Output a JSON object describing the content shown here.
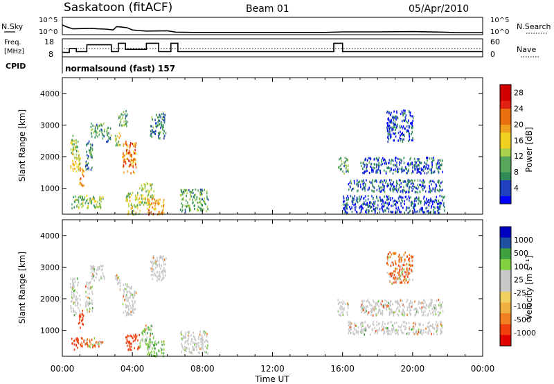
{
  "header": {
    "station": "Saskatoon (fitACF)",
    "beam": "Beam 01",
    "date": "05/Apr/2010",
    "cpid_label": "CPID",
    "cpid_text": "normalsound (fast) 157"
  },
  "panels": {
    "nsky": {
      "label": "N.Sky",
      "right_label": "N.Search",
      "ticks_left": [
        "10^5",
        "10^0"
      ],
      "ticks_right": [
        "10^5",
        "10^0"
      ]
    },
    "freq": {
      "label_line1": "Freq.",
      "label_line2": "[MHz]",
      "right_label": "Nave",
      "ticks_left": [
        "18",
        "8"
      ],
      "ticks_right": [
        "60",
        "0"
      ]
    }
  },
  "colors": {
    "power_scale": [
      "#0000ff",
      "#2040c0",
      "#2e8b57",
      "#58a55c",
      "#a8d04a",
      "#f0d020",
      "#f0a020",
      "#e87010",
      "#e02010",
      "#d00000"
    ],
    "velocity_scale": [
      "#e00000",
      "#f04010",
      "#f08020",
      "#f0b040",
      "#f0d060",
      "#c8c8c8",
      "#80d040",
      "#40a040",
      "#2050a0",
      "#0000c0"
    ],
    "ground_scatter": "#a8a8a8"
  },
  "chart_data": [
    {
      "type": "heatmap",
      "name": "power",
      "ylabel": "Slant Range [km]",
      "ylim": [
        180,
        4500
      ],
      "yticks": [
        "1000",
        "2000",
        "3000",
        "4000"
      ],
      "xlim": [
        "00:00",
        "24:00"
      ],
      "colorbar": {
        "label": "Power [dB]",
        "ticks": [
          "4",
          "8",
          "12",
          "16",
          "20",
          "24",
          "28"
        ],
        "range": [
          0,
          30
        ]
      },
      "blobs": [
        {
          "t0": 0.45,
          "t1": 1.0,
          "r0": 1500,
          "r1": 2200,
          "v": 16
        },
        {
          "t0": 0.4,
          "t1": 0.9,
          "r0": 2200,
          "r1": 2700,
          "v": 12
        },
        {
          "t0": 0.9,
          "t1": 1.2,
          "r0": 1100,
          "r1": 1700,
          "v": 20
        },
        {
          "t0": 1.3,
          "t1": 1.7,
          "r0": 1600,
          "r1": 2600,
          "v": 8
        },
        {
          "t0": 1.6,
          "t1": 2.4,
          "r0": 2600,
          "r1": 3100,
          "v": 10
        },
        {
          "t0": 0.5,
          "t1": 2.3,
          "r0": 400,
          "r1": 800,
          "v": 12
        },
        {
          "t0": 2.5,
          "t1": 2.8,
          "r0": 2500,
          "r1": 3000,
          "v": 8
        },
        {
          "t0": 3.0,
          "t1": 3.3,
          "r0": 2300,
          "r1": 2800,
          "v": 14
        },
        {
          "t0": 3.4,
          "t1": 4.2,
          "r0": 1500,
          "r1": 2500,
          "v": 22
        },
        {
          "t0": 3.2,
          "t1": 3.7,
          "r0": 3000,
          "r1": 3500,
          "v": 10
        },
        {
          "t0": 3.6,
          "t1": 4.4,
          "r0": 200,
          "r1": 900,
          "v": 14
        },
        {
          "t0": 4.4,
          "t1": 5.2,
          "r0": 500,
          "r1": 1200,
          "v": 14
        },
        {
          "t0": 4.8,
          "t1": 5.8,
          "r0": 200,
          "r1": 700,
          "v": 20
        },
        {
          "t0": 5.0,
          "t1": 5.9,
          "r0": 2600,
          "r1": 3400,
          "v": 8
        },
        {
          "t0": 6.7,
          "t1": 8.3,
          "r0": 300,
          "r1": 1000,
          "v": 10
        },
        {
          "t0": 15.7,
          "t1": 16.3,
          "r0": 1500,
          "r1": 2000,
          "v": 10
        },
        {
          "t0": 16.3,
          "t1": 21.7,
          "r0": 900,
          "r1": 1300,
          "v": 6
        },
        {
          "t0": 17.0,
          "t1": 21.7,
          "r0": 1500,
          "r1": 2000,
          "v": 5
        },
        {
          "t0": 16.0,
          "t1": 21.8,
          "r0": 250,
          "r1": 800,
          "v": 4
        },
        {
          "t0": 18.5,
          "t1": 20.0,
          "r0": 2500,
          "r1": 3500,
          "v": 4
        }
      ]
    },
    {
      "type": "heatmap",
      "name": "velocity",
      "ylabel": "Slant Range [km]",
      "ylim": [
        180,
        4500
      ],
      "yticks": [
        "1000",
        "2000",
        "3000",
        "4000"
      ],
      "xlim": [
        "00:00",
        "24:00"
      ],
      "xticks": [
        "00:00",
        "04:00",
        "08:00",
        "12:00",
        "16:00",
        "20:00",
        "00:00"
      ],
      "xlabel": "Time UT",
      "colorbar": {
        "label": "Velocity [m s⁻¹]",
        "ticks": [
          "1000",
          "500",
          "100",
          "25",
          "-25",
          "-100",
          "-500",
          "-1000"
        ]
      },
      "blobs": [
        {
          "t0": 0.45,
          "t1": 1.0,
          "r0": 1500,
          "r1": 2200,
          "v": 0
        },
        {
          "t0": 0.4,
          "t1": 0.9,
          "r0": 2200,
          "r1": 2700,
          "v": 0
        },
        {
          "t0": 0.9,
          "t1": 1.2,
          "r0": 1100,
          "r1": 1700,
          "v": -300
        },
        {
          "t0": 1.3,
          "t1": 1.7,
          "r0": 1600,
          "r1": 2600,
          "v": 0
        },
        {
          "t0": 1.6,
          "t1": 2.4,
          "r0": 2600,
          "r1": 3100,
          "v": 0
        },
        {
          "t0": 0.5,
          "t1": 0.9,
          "r0": 400,
          "r1": 800,
          "v": -300
        },
        {
          "t0": 0.9,
          "t1": 2.3,
          "r0": 500,
          "r1": 800,
          "v": -60
        },
        {
          "t0": 3.0,
          "t1": 3.3,
          "r0": 2300,
          "r1": 2800,
          "v": 0
        },
        {
          "t0": 3.4,
          "t1": 4.2,
          "r0": 1500,
          "r1": 2500,
          "v": 0
        },
        {
          "t0": 3.6,
          "t1": 4.4,
          "r0": 400,
          "r1": 900,
          "v": -300
        },
        {
          "t0": 4.4,
          "t1": 5.2,
          "r0": 500,
          "r1": 1200,
          "v": 60
        },
        {
          "t0": 4.8,
          "t1": 5.8,
          "r0": 200,
          "r1": 700,
          "v": 60
        },
        {
          "t0": 5.0,
          "t1": 5.9,
          "r0": 2600,
          "r1": 3400,
          "v": 0
        },
        {
          "t0": 6.7,
          "t1": 8.3,
          "r0": 300,
          "r1": 1000,
          "v": 0
        },
        {
          "t0": 15.7,
          "t1": 16.3,
          "r0": 1500,
          "r1": 2000,
          "v": 0
        },
        {
          "t0": 16.3,
          "t1": 21.7,
          "r0": 900,
          "r1": 1300,
          "v": 0
        },
        {
          "t0": 17.0,
          "t1": 21.7,
          "r0": 1500,
          "r1": 2000,
          "v": 0
        },
        {
          "t0": 18.5,
          "t1": 20.0,
          "r0": 2500,
          "r1": 3500,
          "v": -60
        }
      ]
    },
    {
      "type": "line",
      "name": "n-sky",
      "x": [
        0,
        0.3,
        0.6,
        1.2,
        1.7,
        2.0,
        2.5,
        2.9,
        3.1,
        3.3,
        3.7,
        4.0,
        4.3,
        4.8,
        6.0,
        6.5,
        7.5,
        9.0,
        12.0,
        15.0,
        16.0,
        18.0,
        20.0,
        21.8,
        22.5,
        24.0
      ],
      "y": [
        3.0,
        2.2,
        1.6,
        1.7,
        1.8,
        1.6,
        1.5,
        1.2,
        2.4,
        2.3,
        2.0,
        1.2,
        1.0,
        0.8,
        0.9,
        0.4,
        0.3,
        0.3,
        0.3,
        0.3,
        0.5,
        0.5,
        0.6,
        0.4,
        0.2,
        0.2
      ]
    },
    {
      "type": "line",
      "name": "frequency",
      "x": [
        0,
        0.4,
        0.4,
        0.8,
        0.8,
        1.4,
        1.4,
        2.8,
        2.8,
        3.2,
        3.2,
        3.6,
        3.6,
        4.8,
        4.8,
        5.5,
        5.5,
        6.2,
        6.2,
        6.6,
        6.6,
        8.6,
        8.6,
        15.5,
        15.5,
        16.0,
        16.0,
        21.8,
        21.8,
        24.0
      ],
      "y": [
        10,
        10,
        12.5,
        12.5,
        10.5,
        10.5,
        15,
        15,
        10.5,
        10.5,
        16,
        16,
        12,
        12,
        16,
        16,
        10.5,
        10.5,
        16,
        16,
        10.5,
        10.5,
        10.5,
        10.5,
        16,
        16,
        10.5,
        10.5,
        10.5,
        10.5
      ]
    }
  ]
}
